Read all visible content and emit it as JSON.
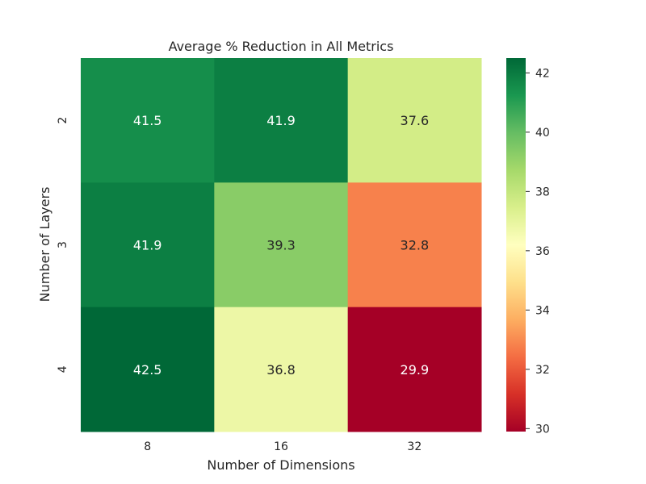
{
  "chart_data": {
    "type": "heatmap",
    "title": "Average % Reduction in All Metrics",
    "xlabel": "Number of Dimensions",
    "ylabel": "Number of Layers",
    "x_categories": [
      "8",
      "16",
      "32"
    ],
    "y_categories": [
      "2",
      "3",
      "4"
    ],
    "values": [
      [
        41.5,
        41.9,
        37.6
      ],
      [
        41.9,
        39.3,
        32.8
      ],
      [
        42.5,
        36.8,
        29.9
      ]
    ],
    "value_labels": [
      [
        "41.5",
        "41.9",
        "37.6"
      ],
      [
        "41.9",
        "39.3",
        "32.8"
      ],
      [
        "42.5",
        "36.8",
        "29.9"
      ]
    ],
    "colormap": "RdYlGn",
    "colorbar": {
      "range": [
        29.9,
        42.5
      ],
      "ticks": [
        30,
        32,
        34,
        36,
        38,
        40,
        42
      ],
      "tick_labels": [
        "30",
        "32",
        "34",
        "36",
        "38",
        "40",
        "42"
      ]
    },
    "grid": false,
    "legend": "colorbar-right"
  }
}
